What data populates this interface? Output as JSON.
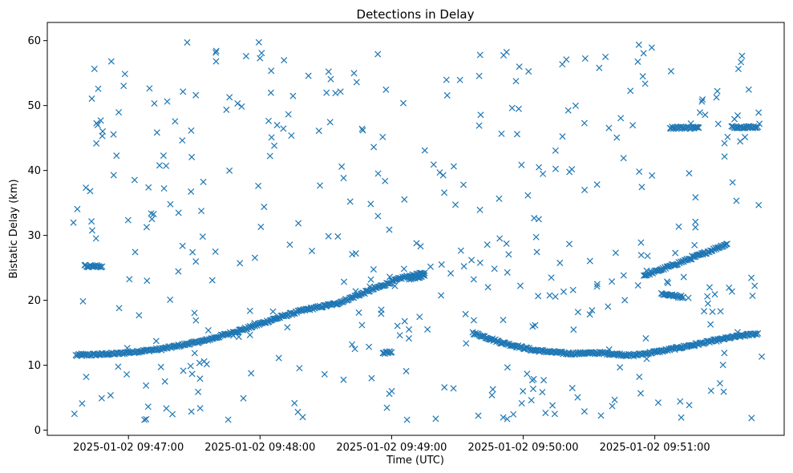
{
  "chart_data": {
    "type": "scatter",
    "title": "Detections in Delay",
    "xlabel": "Time (UTC)",
    "ylabel": "Bistatic Delay (km)",
    "x_range": [
      "2025-01-02 09:46:33",
      "2025-01-02 09:51:49"
    ],
    "xlim": [
      "2025-01-02 09:46:23",
      "2025-01-02 09:51:59"
    ],
    "ylim": [
      -0.8,
      62.8
    ],
    "x_ticks": [
      "2025-01-02 09:47:00",
      "2025-01-02 09:48:00",
      "2025-01-02 09:49:00",
      "2025-01-02 09:50:00",
      "2025-01-02 09:51:00"
    ],
    "y_ticks": [
      0,
      10,
      20,
      30,
      40,
      50,
      60
    ],
    "marker": "x",
    "grid": false,
    "series_color": "#1f77b4",
    "tracks": [
      {
        "description": "delay track",
        "points": [
          [
            "2025-01-02 09:46:36",
            11.5
          ],
          [
            "2025-01-02 09:46:55",
            11.8
          ],
          [
            "2025-01-02 09:47:15",
            12.5
          ],
          [
            "2025-01-02 09:47:35",
            13.8
          ],
          [
            "2025-01-02 09:47:55",
            15.8
          ],
          [
            "2025-01-02 09:48:10",
            17.5
          ],
          [
            "2025-01-02 09:48:20",
            18.5
          ],
          [
            "2025-01-02 09:48:35",
            19.5
          ],
          [
            "2025-01-02 09:48:50",
            21.5
          ],
          [
            "2025-01-02 09:49:05",
            23.5
          ],
          [
            "2025-01-02 09:49:15",
            24.2
          ]
        ]
      },
      {
        "description": "delay track",
        "points": [
          [
            "2025-01-02 09:49:37",
            15.0
          ],
          [
            "2025-01-02 09:49:50",
            13.5
          ],
          [
            "2025-01-02 09:50:05",
            12.3
          ],
          [
            "2025-01-02 09:50:20",
            11.8
          ],
          [
            "2025-01-02 09:50:35",
            11.9
          ],
          [
            "2025-01-02 09:50:50",
            11.5
          ],
          [
            "2025-01-02 09:51:05",
            12.3
          ],
          [
            "2025-01-02 09:51:20",
            13.3
          ],
          [
            "2025-01-02 09:51:35",
            14.3
          ],
          [
            "2025-01-02 09:51:47",
            14.9
          ]
        ]
      },
      {
        "description": "delay track",
        "points": [
          [
            "2025-01-02 09:50:55",
            23.8
          ],
          [
            "2025-01-02 09:51:05",
            25.0
          ],
          [
            "2025-01-02 09:51:20",
            26.9
          ],
          [
            "2025-01-02 09:51:33",
            28.7
          ]
        ]
      },
      {
        "description": "delay track",
        "points": [
          [
            "2025-01-02 09:51:03",
            21.0
          ],
          [
            "2025-01-02 09:51:13",
            20.5
          ]
        ]
      },
      {
        "description": "delay track",
        "points": [
          [
            "2025-01-02 09:51:07",
            46.6
          ],
          [
            "2025-01-02 09:51:20",
            46.6
          ]
        ]
      },
      {
        "description": "delay track",
        "points": [
          [
            "2025-01-02 09:51:35",
            46.7
          ],
          [
            "2025-01-02 09:51:47",
            46.7
          ]
        ]
      },
      {
        "description": "delay track",
        "points": [
          [
            "2025-01-02 09:46:40",
            25.3
          ],
          [
            "2025-01-02 09:46:48",
            25.2
          ]
        ]
      },
      {
        "description": "delay track",
        "points": [
          [
            "2025-01-02 09:48:56",
            11.9
          ],
          [
            "2025-01-02 09:49:00",
            12.0
          ]
        ]
      },
      {
        "description": "delay track",
        "points": [
          [
            "2025-01-02 09:49:08",
            23.3
          ],
          [
            "2025-01-02 09:49:15",
            23.8
          ]
        ]
      }
    ],
    "clutter": {
      "description": "scattered detections",
      "count": 420,
      "x_range": [
        "2025-01-02 09:46:34",
        "2025-01-02 09:51:49"
      ],
      "y_range": [
        1.5,
        60.0
      ]
    }
  }
}
